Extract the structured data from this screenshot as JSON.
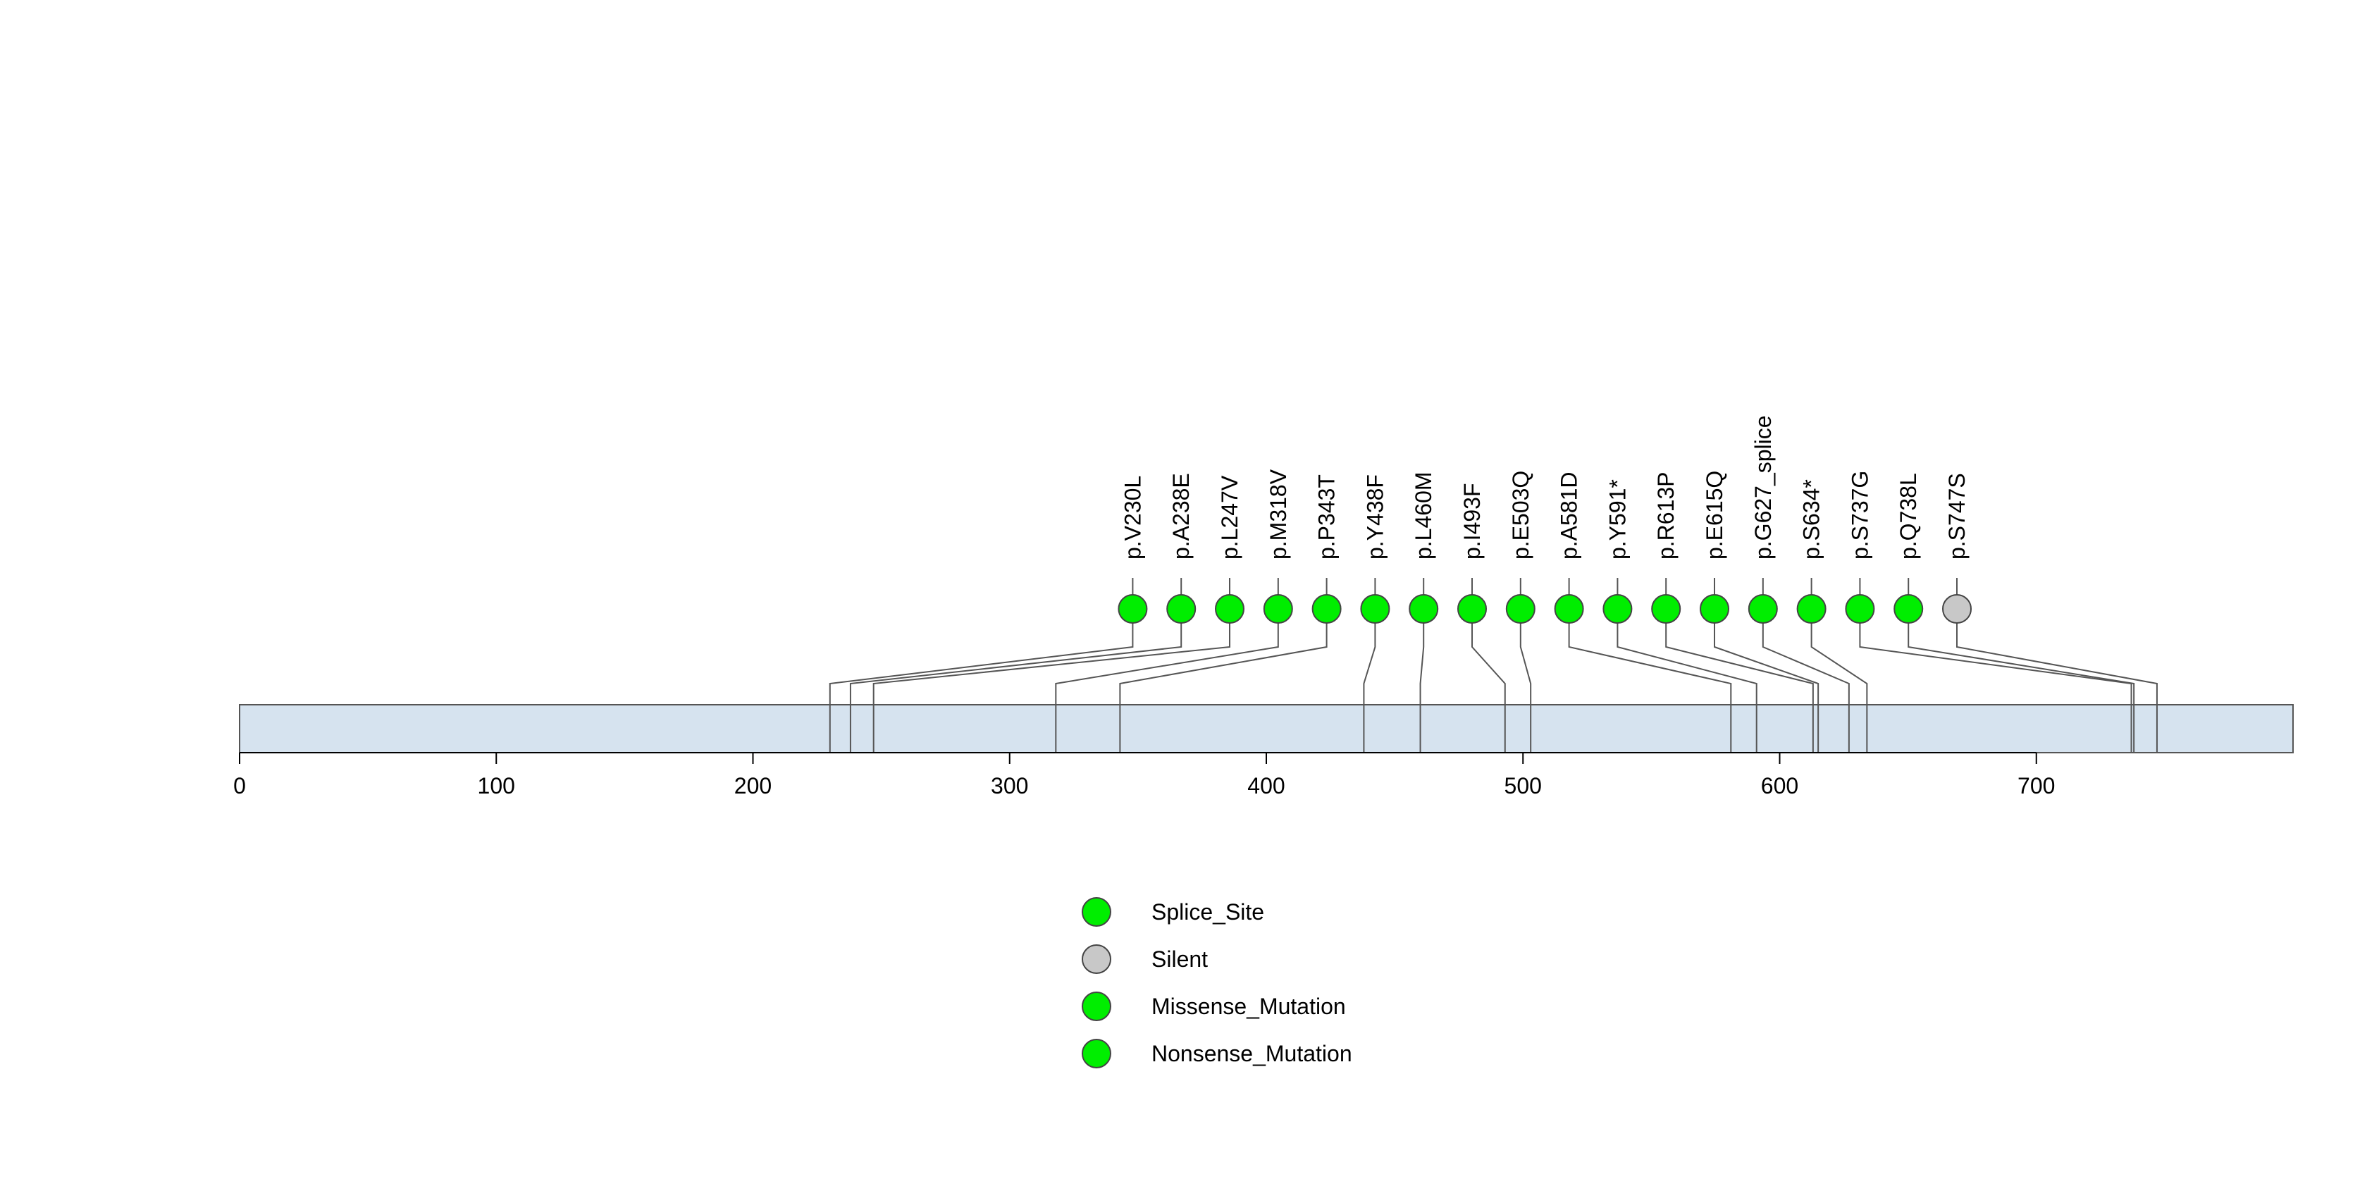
{
  "chart_data": {
    "type": "lollipop",
    "title": "",
    "xlabel": "",
    "ylabel": "",
    "protein_length": 800,
    "xlim": [
      0,
      800
    ],
    "x_ticks": [
      0,
      100,
      200,
      300,
      400,
      500,
      600,
      700
    ],
    "x_tick_labels": [
      "0",
      "100",
      "200",
      "300",
      "400",
      "500",
      "600",
      "700"
    ],
    "mutations": [
      {
        "label": "p.V230L",
        "position": 230,
        "type": "Missense_Mutation"
      },
      {
        "label": "p.A238E",
        "position": 238,
        "type": "Missense_Mutation"
      },
      {
        "label": "p.L247V",
        "position": 247,
        "type": "Missense_Mutation"
      },
      {
        "label": "p.M318V",
        "position": 318,
        "type": "Missense_Mutation"
      },
      {
        "label": "p.P343T",
        "position": 343,
        "type": "Missense_Mutation"
      },
      {
        "label": "p.Y438F",
        "position": 438,
        "type": "Missense_Mutation"
      },
      {
        "label": "p.L460M",
        "position": 460,
        "type": "Missense_Mutation"
      },
      {
        "label": "p.I493F",
        "position": 493,
        "type": "Missense_Mutation"
      },
      {
        "label": "p.E503Q",
        "position": 503,
        "type": "Missense_Mutation"
      },
      {
        "label": "p.A581D",
        "position": 581,
        "type": "Missense_Mutation"
      },
      {
        "label": "p.Y591*",
        "position": 591,
        "type": "Nonsense_Mutation"
      },
      {
        "label": "p.R613P",
        "position": 613,
        "type": "Missense_Mutation"
      },
      {
        "label": "p.E615Q",
        "position": 615,
        "type": "Missense_Mutation"
      },
      {
        "label": "p.G627_splice",
        "position": 627,
        "type": "Splice_Site"
      },
      {
        "label": "p.S634*",
        "position": 634,
        "type": "Nonsense_Mutation"
      },
      {
        "label": "p.S737G",
        "position": 737,
        "type": "Missense_Mutation"
      },
      {
        "label": "p.Q738L",
        "position": 738,
        "type": "Missense_Mutation"
      },
      {
        "label": "p.S747S",
        "position": 747,
        "type": "Silent"
      }
    ],
    "legend": [
      {
        "name": "Splice_Site",
        "color": "#00ee00"
      },
      {
        "name": "Silent",
        "color": "#c8c8c8"
      },
      {
        "name": "Missense_Mutation",
        "color": "#00ee00"
      },
      {
        "name": "Nonsense_Mutation",
        "color": "#00ee00"
      }
    ],
    "legend_position": "bottom-center",
    "colors": {
      "protein_fill": "#d6e3ef",
      "protein_stroke": "#555555",
      "lollipop_stroke": "#555555"
    }
  }
}
